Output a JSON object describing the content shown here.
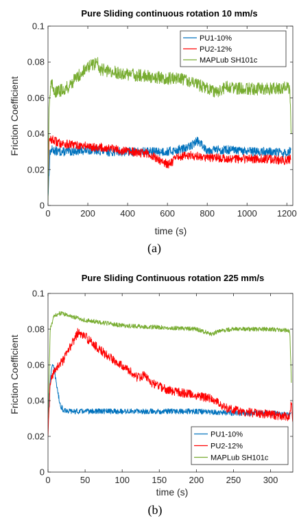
{
  "chart_data": [
    {
      "type": "line",
      "title": "Pure Sliding  continuous rotation  10 mm/s",
      "xlabel": "time (s)",
      "ylabel": "Friction Coefficient",
      "caption": "(a)",
      "xlim": [
        0,
        1230
      ],
      "ylim": [
        0,
        0.1
      ],
      "xticks": [
        0,
        200,
        400,
        600,
        800,
        1000,
        1200
      ],
      "yticks": [
        0,
        0.02,
        0.04,
        0.06,
        0.08,
        0.1
      ],
      "ytick_labels": [
        "0",
        "0.02",
        "0.04",
        "0.06",
        "0.08",
        "0.1"
      ],
      "legend_position": "top-right",
      "grid": false,
      "series": [
        {
          "name": "PU1-10%",
          "color": "#0072BD",
          "noise": 0.0025,
          "x": [
            0,
            10,
            20,
            50,
            100,
            200,
            300,
            400,
            500,
            600,
            650,
            700,
            750,
            760,
            800,
            900,
            1000,
            1100,
            1200,
            1220
          ],
          "y": [
            0.005,
            0.03,
            0.031,
            0.03,
            0.03,
            0.031,
            0.03,
            0.03,
            0.03,
            0.03,
            0.031,
            0.032,
            0.036,
            0.035,
            0.031,
            0.031,
            0.03,
            0.03,
            0.029,
            0.031
          ]
        },
        {
          "name": "PU2-12%",
          "color": "#FF0000",
          "noise": 0.0025,
          "x": [
            0,
            5,
            15,
            50,
            100,
            200,
            300,
            400,
            500,
            550,
            600,
            620,
            650,
            700,
            800,
            900,
            1000,
            1100,
            1200,
            1220
          ],
          "y": [
            0.008,
            0.035,
            0.037,
            0.035,
            0.034,
            0.033,
            0.032,
            0.03,
            0.029,
            0.026,
            0.023,
            0.024,
            0.027,
            0.028,
            0.027,
            0.026,
            0.026,
            0.026,
            0.025,
            0.026
          ]
        },
        {
          "name": "MAPLub SH101c",
          "color": "#77AC30",
          "noise": 0.0035,
          "x": [
            0,
            5,
            15,
            40,
            100,
            150,
            200,
            250,
            260,
            300,
            400,
            500,
            600,
            700,
            800,
            850,
            900,
            1000,
            1100,
            1200,
            1215,
            1222
          ],
          "y": [
            0.002,
            0.055,
            0.068,
            0.063,
            0.066,
            0.072,
            0.077,
            0.08,
            0.076,
            0.075,
            0.073,
            0.072,
            0.071,
            0.07,
            0.065,
            0.063,
            0.066,
            0.065,
            0.065,
            0.066,
            0.064,
            0.04
          ]
        }
      ]
    },
    {
      "type": "line",
      "title": "Pure Sliding Continuous rotation  225 mm/s",
      "xlabel": "time (s)",
      "ylabel": "Friction Coefficient",
      "caption": "(b)",
      "xlim": [
        0,
        330
      ],
      "ylim": [
        0,
        0.1
      ],
      "xticks": [
        0,
        50,
        100,
        150,
        200,
        250,
        300
      ],
      "yticks": [
        0,
        0.02,
        0.04,
        0.06,
        0.08,
        0.1
      ],
      "ytick_labels": [
        "0",
        "0.02",
        "0.04",
        "0.06",
        "0.08",
        "0.1"
      ],
      "legend_position": "bottom-right",
      "grid": false,
      "series": [
        {
          "name": "PU1-10%",
          "color": "#0072BD",
          "noise": 0.0015,
          "x": [
            0,
            2,
            5,
            8,
            12,
            16,
            20,
            30,
            50,
            100,
            150,
            200,
            250,
            300,
            325,
            328
          ],
          "y": [
            0.03,
            0.045,
            0.06,
            0.058,
            0.048,
            0.038,
            0.035,
            0.034,
            0.034,
            0.034,
            0.034,
            0.034,
            0.033,
            0.033,
            0.032,
            0.033
          ]
        },
        {
          "name": "PU2-12%",
          "color": "#FF0000",
          "noise": 0.0025,
          "x": [
            0,
            3,
            10,
            20,
            30,
            40,
            50,
            60,
            80,
            100,
            120,
            130,
            140,
            160,
            200,
            220,
            240,
            260,
            280,
            300,
            325,
            328,
            330
          ],
          "y": [
            0.02,
            0.05,
            0.058,
            0.062,
            0.07,
            0.078,
            0.076,
            0.072,
            0.065,
            0.06,
            0.053,
            0.054,
            0.05,
            0.046,
            0.043,
            0.041,
            0.036,
            0.034,
            0.033,
            0.032,
            0.031,
            0.04,
            0.028
          ]
        },
        {
          "name": "MAPLub SH101c",
          "color": "#77AC30",
          "noise": 0.0012,
          "x": [
            0,
            3,
            8,
            15,
            25,
            50,
            100,
            150,
            200,
            215,
            220,
            230,
            250,
            300,
            326,
            328
          ],
          "y": [
            0.03,
            0.08,
            0.087,
            0.089,
            0.088,
            0.085,
            0.082,
            0.081,
            0.08,
            0.078,
            0.077,
            0.079,
            0.08,
            0.08,
            0.079,
            0.05
          ]
        }
      ]
    }
  ]
}
